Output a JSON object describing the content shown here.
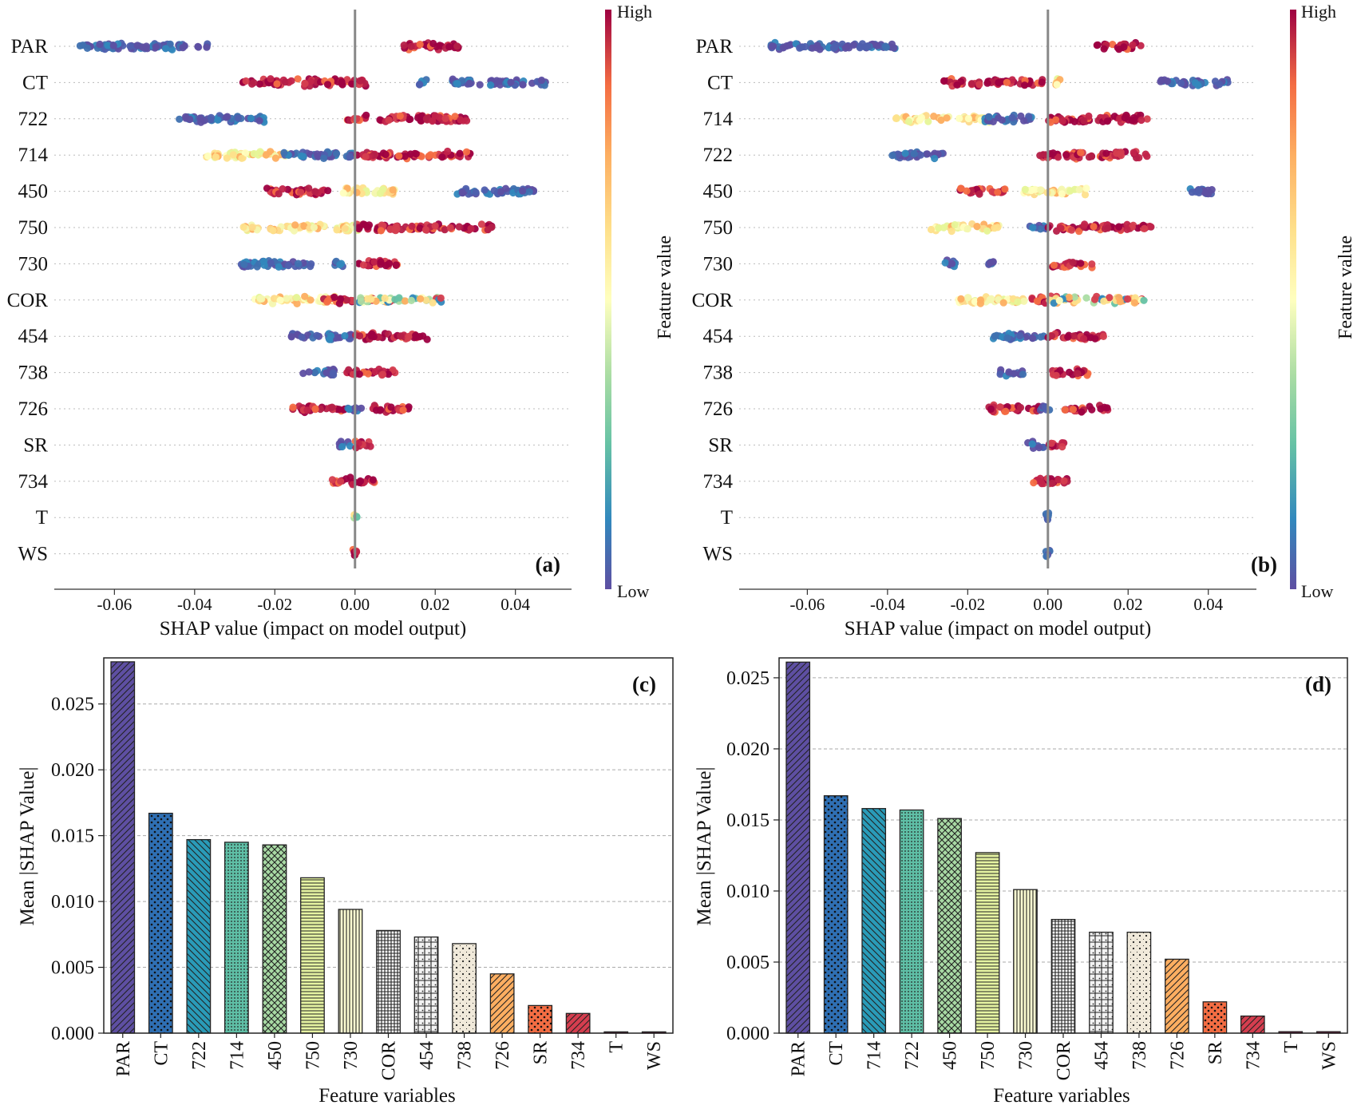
{
  "chart_data": [
    {
      "id": "a",
      "type": "scatter",
      "panel_label": "(a)",
      "xlabel": "SHAP value (impact on model output)",
      "xlim": [
        -0.075,
        0.054
      ],
      "xticks": [
        -0.06,
        -0.04,
        -0.02,
        0.0,
        0.02,
        0.04
      ],
      "xtick_labels": [
        "-0.06",
        "-0.04",
        "-0.02",
        "0.00",
        "0.02",
        "0.04"
      ],
      "colorbar": {
        "label": "Feature value",
        "high": "High",
        "low": "Low"
      },
      "features": [
        {
          "name": "PAR",
          "clusters": [
            [
              -0.07,
              -0.036,
              "low"
            ],
            [
              0.012,
              0.026,
              "high"
            ]
          ]
        },
        {
          "name": "CT",
          "clusters": [
            [
              -0.028,
              0.003,
              "high"
            ],
            [
              0.016,
              0.018,
              "low"
            ],
            [
              0.024,
              0.048,
              "low"
            ]
          ]
        },
        {
          "name": "722",
          "clusters": [
            [
              -0.044,
              -0.022,
              "low"
            ],
            [
              -0.003,
              0.028,
              "high"
            ]
          ]
        },
        {
          "name": "714",
          "clusters": [
            [
              -0.038,
              -0.016,
              "mid"
            ],
            [
              -0.018,
              0.0,
              "low"
            ],
            [
              0.0,
              0.029,
              "high"
            ]
          ]
        },
        {
          "name": "450",
          "clusters": [
            [
              -0.022,
              -0.006,
              "high"
            ],
            [
              -0.003,
              0.01,
              "mid"
            ],
            [
              0.025,
              0.045,
              "low"
            ]
          ]
        },
        {
          "name": "750",
          "clusters": [
            [
              -0.028,
              0.002,
              "mid"
            ],
            [
              0.0,
              0.035,
              "high"
            ]
          ]
        },
        {
          "name": "730",
          "clusters": [
            [
              -0.029,
              -0.01,
              "low"
            ],
            [
              -0.005,
              -0.003,
              "low"
            ],
            [
              0.0,
              0.011,
              "high"
            ]
          ]
        },
        {
          "name": "COR",
          "clusters": [
            [
              -0.025,
              -0.005,
              "mid"
            ],
            [
              -0.008,
              0.0,
              "high"
            ],
            [
              0.0,
              0.022,
              "mixed"
            ]
          ]
        },
        {
          "name": "454",
          "clusters": [
            [
              -0.016,
              0.0,
              "low"
            ],
            [
              0.0,
              0.018,
              "high"
            ]
          ]
        },
        {
          "name": "738",
          "clusters": [
            [
              -0.013,
              -0.005,
              "low"
            ],
            [
              -0.002,
              0.01,
              "high"
            ]
          ]
        },
        {
          "name": "726",
          "clusters": [
            [
              -0.016,
              -0.002,
              "high"
            ],
            [
              -0.002,
              0.002,
              "low"
            ],
            [
              0.004,
              0.014,
              "high"
            ]
          ]
        },
        {
          "name": "SR",
          "clusters": [
            [
              -0.004,
              -0.001,
              "low"
            ],
            [
              0.0,
              0.004,
              "high"
            ]
          ]
        },
        {
          "name": "734",
          "clusters": [
            [
              -0.006,
              0.006,
              "high"
            ]
          ]
        },
        {
          "name": "T",
          "clusters": [
            [
              -0.0005,
              0.0005,
              "mixed"
            ]
          ]
        },
        {
          "name": "WS",
          "clusters": [
            [
              -0.0005,
              0.0005,
              "high"
            ]
          ]
        }
      ]
    },
    {
      "id": "b",
      "type": "scatter",
      "panel_label": "(b)",
      "xlabel": "SHAP value (impact on model output)",
      "xlim": [
        -0.077,
        0.052
      ],
      "xticks": [
        -0.06,
        -0.04,
        -0.02,
        0.0,
        0.02,
        0.04
      ],
      "xtick_labels": [
        "-0.06",
        "-0.04",
        "-0.02",
        "0.00",
        "0.02",
        "0.04"
      ],
      "colorbar": {
        "label": "Feature value",
        "high": "High",
        "low": "Low"
      },
      "features": [
        {
          "name": "PAR",
          "clusters": [
            [
              -0.07,
              -0.037,
              "low"
            ],
            [
              0.012,
              0.024,
              "high"
            ]
          ]
        },
        {
          "name": "CT",
          "clusters": [
            [
              -0.026,
              -0.001,
              "high"
            ],
            [
              0.002,
              0.003,
              "mid"
            ],
            [
              0.028,
              0.045,
              "low"
            ]
          ]
        },
        {
          "name": "714",
          "clusters": [
            [
              -0.038,
              -0.014,
              "mid"
            ],
            [
              -0.016,
              -0.004,
              "low"
            ],
            [
              0.0,
              0.025,
              "high"
            ]
          ]
        },
        {
          "name": "722",
          "clusters": [
            [
              -0.039,
              -0.026,
              "low"
            ],
            [
              -0.002,
              0.025,
              "high"
            ]
          ]
        },
        {
          "name": "450",
          "clusters": [
            [
              -0.022,
              -0.01,
              "high"
            ],
            [
              -0.006,
              0.01,
              "mid"
            ],
            [
              0.035,
              0.042,
              "low"
            ]
          ]
        },
        {
          "name": "750",
          "clusters": [
            [
              -0.03,
              -0.012,
              "mid"
            ],
            [
              -0.005,
              0.0,
              "low"
            ],
            [
              0.0,
              0.026,
              "high"
            ]
          ]
        },
        {
          "name": "730",
          "clusters": [
            [
              -0.026,
              -0.022,
              "low"
            ],
            [
              -0.016,
              -0.013,
              "low"
            ],
            [
              0.001,
              0.011,
              "high"
            ]
          ]
        },
        {
          "name": "COR",
          "clusters": [
            [
              -0.023,
              -0.005,
              "mid"
            ],
            [
              -0.005,
              0.0,
              "high"
            ],
            [
              0.0,
              0.024,
              "mixed"
            ]
          ]
        },
        {
          "name": "454",
          "clusters": [
            [
              -0.014,
              0.0,
              "low"
            ],
            [
              0.0,
              0.014,
              "high"
            ]
          ]
        },
        {
          "name": "738",
          "clusters": [
            [
              -0.012,
              -0.006,
              "low"
            ],
            [
              0.001,
              0.01,
              "high"
            ]
          ]
        },
        {
          "name": "726",
          "clusters": [
            [
              -0.015,
              -0.002,
              "high"
            ],
            [
              -0.002,
              0.001,
              "low"
            ],
            [
              0.004,
              0.015,
              "high"
            ]
          ]
        },
        {
          "name": "SR",
          "clusters": [
            [
              -0.005,
              -0.001,
              "low"
            ],
            [
              0.0,
              0.004,
              "high"
            ]
          ]
        },
        {
          "name": "734",
          "clusters": [
            [
              -0.004,
              0.006,
              "high"
            ]
          ]
        },
        {
          "name": "T",
          "clusters": [
            [
              -0.0005,
              0.0005,
              "low"
            ]
          ]
        },
        {
          "name": "WS",
          "clusters": [
            [
              -0.0005,
              0.0005,
              "low"
            ]
          ]
        }
      ]
    },
    {
      "id": "c",
      "type": "bar",
      "panel_label": "(c)",
      "xlabel": "Feature variables",
      "ylabel": "Mean |SHAP Value|",
      "ylim": [
        0,
        0.0285
      ],
      "yticks": [
        0.0,
        0.005,
        0.01,
        0.015,
        0.02,
        0.025
      ],
      "ytick_labels": [
        "0.000",
        "0.005",
        "0.010",
        "0.015",
        "0.020",
        "0.025"
      ],
      "categories": [
        "PAR",
        "CT",
        "722",
        "714",
        "450",
        "750",
        "730",
        "COR",
        "454",
        "738",
        "726",
        "SR",
        "734",
        "T",
        "WS"
      ],
      "values": [
        0.0282,
        0.0167,
        0.0147,
        0.0145,
        0.0143,
        0.0118,
        0.0094,
        0.0078,
        0.0073,
        0.0068,
        0.0045,
        0.0021,
        0.0015,
        0.0001,
        0.0001
      ],
      "colors": [
        "#5e4fa2",
        "#2f6fb3",
        "#2a9bb8",
        "#5fbfa6",
        "#a8d9a4",
        "#e6f4a2",
        "#fdfdd2",
        "#ffffff",
        "#f2f2f2",
        "#f0e9da",
        "#fdae61",
        "#f46d43",
        "#d53e4f",
        "#9e0142",
        "#9e0142"
      ],
      "patterns": [
        "diag-fwd",
        "dots",
        "diag-back",
        "dots-fine",
        "crosshatch",
        "horiz",
        "vert",
        "grid",
        "weave",
        "dots-sparse",
        "diag-fwd",
        "dots",
        "diag-fwd",
        "none",
        "none"
      ]
    },
    {
      "id": "d",
      "type": "bar",
      "panel_label": "(d)",
      "xlabel": "Feature variables",
      "ylabel": "Mean |SHAP Value|",
      "ylim": [
        0,
        0.0264
      ],
      "yticks": [
        0.0,
        0.005,
        0.01,
        0.015,
        0.02,
        0.025
      ],
      "ytick_labels": [
        "0.000",
        "0.005",
        "0.010",
        "0.015",
        "0.020",
        "0.025"
      ],
      "categories": [
        "PAR",
        "CT",
        "714",
        "722",
        "450",
        "750",
        "730",
        "COR",
        "454",
        "738",
        "726",
        "SR",
        "734",
        "T",
        "WS"
      ],
      "values": [
        0.0261,
        0.0167,
        0.0158,
        0.0157,
        0.0151,
        0.0127,
        0.0101,
        0.008,
        0.0071,
        0.0071,
        0.0052,
        0.0022,
        0.0012,
        0.0001,
        0.0001
      ],
      "colors": [
        "#5e4fa2",
        "#2f6fb3",
        "#2a9bb8",
        "#5fbfa6",
        "#a8d9a4",
        "#e6f4a2",
        "#fdfdd2",
        "#ffffff",
        "#f2f2f2",
        "#f0e9da",
        "#fdae61",
        "#f46d43",
        "#d53e4f",
        "#9e0142",
        "#9e0142"
      ],
      "patterns": [
        "diag-fwd",
        "dots",
        "diag-back",
        "dots-fine",
        "crosshatch",
        "horiz",
        "vert",
        "grid",
        "weave",
        "dots-sparse",
        "diag-fwd",
        "dots",
        "diag-fwd",
        "none",
        "none"
      ]
    }
  ]
}
